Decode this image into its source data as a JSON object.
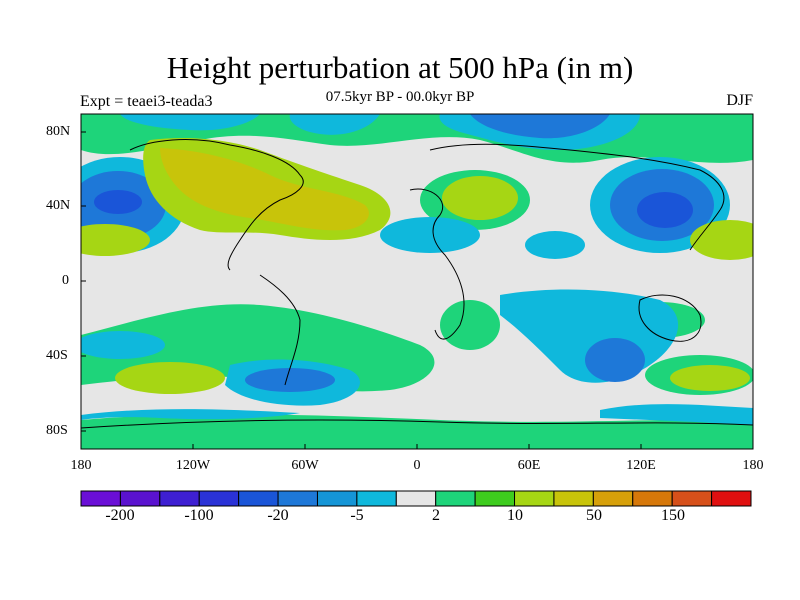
{
  "title": "Height perturbation at 500 hPa (in m)",
  "subtitle": "07.5kyr BP - 00.0kyr BP",
  "left_label": "Expt = teaei3-teada3",
  "right_label": "DJF",
  "lat_labels": [
    "80N",
    "40N",
    "0",
    "40S",
    "80S"
  ],
  "lon_labels": [
    "180",
    "120W",
    "60W",
    "0",
    "60E",
    "120E",
    "180"
  ],
  "colorbar": {
    "colors": [
      "#6a0fd6",
      "#5a12cf",
      "#3e1fd2",
      "#2a32d6",
      "#1a55d8",
      "#1e78d8",
      "#1595d6",
      "#0fb8dc",
      "#e6e6e6",
      "#1ed47a",
      "#3ecc1e",
      "#a6d614",
      "#c8c40a",
      "#d6a00a",
      "#d6780a",
      "#d6501a",
      "#e01010"
    ],
    "tick_labels": [
      "-200",
      "-100",
      "-20",
      "-5",
      "2",
      "10",
      "50",
      "150"
    ]
  },
  "palette": {
    "neutral": "#e6e6e6",
    "light_blue": "#0fb8dc",
    "blue": "#1e78d8",
    "dark_blue": "#1a55d8",
    "green": "#1ed47a",
    "yellow_green": "#a6d614",
    "olive": "#c8c40a",
    "coast": "#000000"
  }
}
